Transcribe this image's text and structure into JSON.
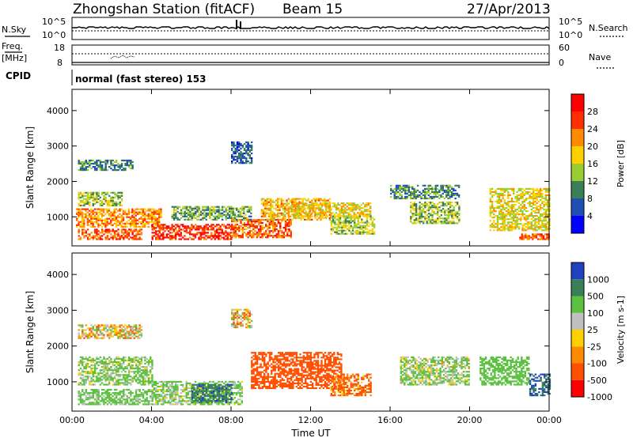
{
  "header": {
    "title": "Zhongshan Station (fitACF)",
    "beam": "Beam 15",
    "date": "27/Apr/2013"
  },
  "panel_labels": {
    "nsky": "N.Sky",
    "nsky_top": "10^5",
    "nsky_bottom": "10^0",
    "nsearch": "N.Search",
    "nsearch_top": "10^5",
    "nsearch_bottom": "10^0",
    "freq_label_1": "Freq.",
    "freq_label_2": "[MHz]",
    "freq_top": "18",
    "freq_bottom": "8",
    "nave": "Nave",
    "nave_top": "60",
    "nave_bottom": "0",
    "cpid_label": "CPID",
    "cpid_value": "normal (fast stereo) 153"
  },
  "chart_data": [
    {
      "type": "heatmap",
      "name_hint": "power",
      "ylabel": "Slant Range [km]",
      "xlabel": "Time UT",
      "x_ticks": [
        "00:00",
        "04:00",
        "08:00",
        "12:00",
        "16:00",
        "20:00",
        "00:00"
      ],
      "xlim_hours": [
        0,
        24
      ],
      "y_ticks": [
        1000,
        2000,
        3000,
        4000
      ],
      "ylim_km": [
        180,
        4600
      ],
      "colorbar": {
        "label": "Power [dB]",
        "ticks": [
          "4",
          "8",
          "12",
          "16",
          "20",
          "24",
          "28"
        ],
        "colors": [
          "#0000ff",
          "#1f4fb4",
          "#3a7f55",
          "#9acd32",
          "#ffd000",
          "#ff8c00",
          "#ff3000",
          "#ff0000"
        ]
      },
      "blobs": [
        {
          "t": [
            0.3,
            3.0
          ],
          "r": [
            2300,
            2600
          ],
          "v": 9
        },
        {
          "t": [
            0.3,
            2.5
          ],
          "r": [
            1300,
            1700
          ],
          "v": 14
        },
        {
          "t": [
            0.2,
            4.5
          ],
          "r": [
            700,
            1200
          ],
          "v": 22
        },
        {
          "t": [
            0.3,
            3.5
          ],
          "r": [
            350,
            650
          ],
          "v": 25
        },
        {
          "t": [
            4.0,
            8.0
          ],
          "r": [
            350,
            800
          ],
          "v": 27
        },
        {
          "t": [
            8.0,
            11.0
          ],
          "r": [
            400,
            900
          ],
          "v": 24
        },
        {
          "t": [
            5.0,
            9.0
          ],
          "r": [
            900,
            1300
          ],
          "v": 12
        },
        {
          "t": [
            9.5,
            13.0
          ],
          "r": [
            900,
            1500
          ],
          "v": 20
        },
        {
          "t": [
            11.0,
            15.0
          ],
          "r": [
            1000,
            1400
          ],
          "v": 18
        },
        {
          "t": [
            13.0,
            15.2
          ],
          "r": [
            500,
            1000
          ],
          "v": 15
        },
        {
          "t": [
            16.0,
            19.5
          ],
          "r": [
            1500,
            1900
          ],
          "v": 10
        },
        {
          "t": [
            17.0,
            19.5
          ],
          "r": [
            800,
            1400
          ],
          "v": 14
        },
        {
          "t": [
            21.0,
            24.0
          ],
          "r": [
            600,
            1800
          ],
          "v": 17
        },
        {
          "t": [
            22.5,
            24.0
          ],
          "r": [
            350,
            500
          ],
          "v": 24
        },
        {
          "t": [
            8.0,
            9.0
          ],
          "r": [
            2500,
            3100
          ],
          "v": 7
        }
      ]
    },
    {
      "type": "heatmap",
      "name_hint": "velocity",
      "ylabel": "Slant Range [km]",
      "xlabel": "Time UT",
      "x_ticks": [
        "00:00",
        "04:00",
        "08:00",
        "12:00",
        "16:00",
        "20:00",
        "00:00"
      ],
      "xlim_hours": [
        0,
        24
      ],
      "y_ticks": [
        1000,
        2000,
        3000,
        4000
      ],
      "ylim_km": [
        180,
        4600
      ],
      "colorbar": {
        "label": "Velocity [m s-1]",
        "ticks": [
          "1000",
          "500",
          "100",
          "25",
          "-25",
          "-100",
          "-500",
          "-1000"
        ],
        "colors": [
          "#2040c0",
          "#3a7f55",
          "#5cc040",
          "#c0c0c0",
          "#ffd000",
          "#ff8c00",
          "#ff5000",
          "#ff0000"
        ]
      },
      "blobs": [
        {
          "t": [
            0.3,
            3.5
          ],
          "r": [
            2200,
            2600
          ],
          "v": 0
        },
        {
          "t": [
            0.3,
            4.0
          ],
          "r": [
            900,
            1700
          ],
          "v": 150
        },
        {
          "t": [
            0.3,
            4.0
          ],
          "r": [
            350,
            800
          ],
          "v": 200
        },
        {
          "t": [
            4.0,
            8.5
          ],
          "r": [
            350,
            1000
          ],
          "v": 150
        },
        {
          "t": [
            6.0,
            8.0
          ],
          "r": [
            400,
            900
          ],
          "v": 900
        },
        {
          "t": [
            9.0,
            13.5
          ],
          "r": [
            800,
            1800
          ],
          "v": -300
        },
        {
          "t": [
            13.0,
            15.0
          ],
          "r": [
            600,
            1200
          ],
          "v": -150
        },
        {
          "t": [
            16.5,
            20.0
          ],
          "r": [
            900,
            1700
          ],
          "v": 120
        },
        {
          "t": [
            20.5,
            23.0
          ],
          "r": [
            900,
            1700
          ],
          "v": 300
        },
        {
          "t": [
            23.0,
            24.0
          ],
          "r": [
            600,
            1200
          ],
          "v": 1000
        },
        {
          "t": [
            8.0,
            9.0
          ],
          "r": [
            2500,
            3000
          ],
          "v": 0
        }
      ]
    }
  ]
}
